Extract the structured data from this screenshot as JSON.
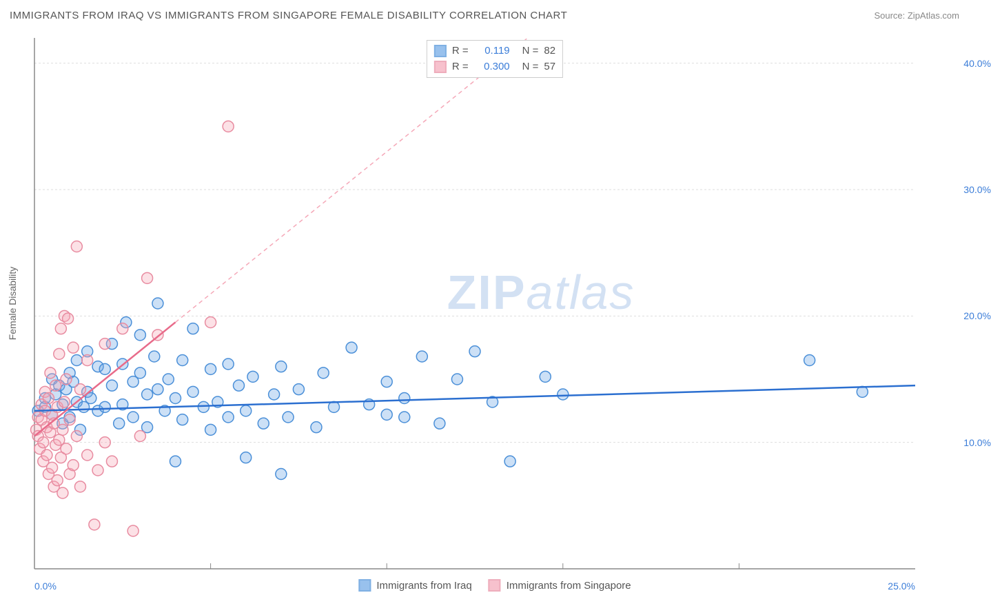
{
  "header": {
    "title": "IMMIGRANTS FROM IRAQ VS IMMIGRANTS FROM SINGAPORE FEMALE DISABILITY CORRELATION CHART",
    "source_prefix": "Source: ",
    "source": "ZipAtlas.com"
  },
  "watermark": {
    "bold": "ZIP",
    "rest": "atlas"
  },
  "chart": {
    "type": "scatter",
    "y_label": "Female Disability",
    "background_color": "#ffffff",
    "grid_color": "#dddddd",
    "axis_color": "#888888",
    "x": {
      "min": 0,
      "max": 25,
      "ticks": [
        0,
        25
      ],
      "tick_labels": [
        "0.0%",
        "25.0%"
      ],
      "minor_ticks": [
        5,
        10,
        15,
        20
      ]
    },
    "y": {
      "min": 0,
      "max": 42,
      "ticks": [
        10,
        20,
        30,
        40
      ],
      "tick_labels": [
        "10.0%",
        "20.0%",
        "30.0%",
        "40.0%"
      ]
    },
    "marker_radius": 8,
    "marker_stroke_width": 1.5,
    "marker_fill_opacity": 0.35,
    "series": [
      {
        "name": "Immigrants from Iraq",
        "color": "#6da7e6",
        "stroke": "#4a8fd8",
        "R": "0.119",
        "N": "82",
        "trend": {
          "x1": 0,
          "y1": 12.5,
          "x2": 25,
          "y2": 14.5,
          "color": "#2b6fd0",
          "width": 2.5,
          "dash": ""
        },
        "points": [
          [
            0.1,
            12.5
          ],
          [
            0.3,
            13.5
          ],
          [
            0.3,
            12.8
          ],
          [
            0.5,
            15.0
          ],
          [
            0.5,
            12.2
          ],
          [
            0.6,
            13.8
          ],
          [
            0.7,
            14.5
          ],
          [
            0.8,
            11.5
          ],
          [
            0.8,
            13.0
          ],
          [
            0.9,
            14.2
          ],
          [
            1.0,
            12.0
          ],
          [
            1.0,
            15.5
          ],
          [
            1.1,
            14.8
          ],
          [
            1.2,
            16.5
          ],
          [
            1.2,
            13.2
          ],
          [
            1.3,
            11.0
          ],
          [
            1.4,
            12.8
          ],
          [
            1.5,
            14.0
          ],
          [
            1.5,
            17.2
          ],
          [
            1.6,
            13.5
          ],
          [
            1.8,
            12.5
          ],
          [
            1.8,
            16.0
          ],
          [
            2.0,
            15.8
          ],
          [
            2.0,
            12.8
          ],
          [
            2.2,
            14.5
          ],
          [
            2.2,
            17.8
          ],
          [
            2.4,
            11.5
          ],
          [
            2.5,
            13.0
          ],
          [
            2.5,
            16.2
          ],
          [
            2.6,
            19.5
          ],
          [
            2.8,
            14.8
          ],
          [
            2.8,
            12.0
          ],
          [
            3.0,
            15.5
          ],
          [
            3.0,
            18.5
          ],
          [
            3.2,
            13.8
          ],
          [
            3.2,
            11.2
          ],
          [
            3.4,
            16.8
          ],
          [
            3.5,
            14.2
          ],
          [
            3.5,
            21.0
          ],
          [
            3.7,
            12.5
          ],
          [
            3.8,
            15.0
          ],
          [
            4.0,
            8.5
          ],
          [
            4.0,
            13.5
          ],
          [
            4.2,
            16.5
          ],
          [
            4.2,
            11.8
          ],
          [
            4.5,
            14.0
          ],
          [
            4.5,
            19.0
          ],
          [
            4.8,
            12.8
          ],
          [
            5.0,
            15.8
          ],
          [
            5.0,
            11.0
          ],
          [
            5.2,
            13.2
          ],
          [
            5.5,
            16.2
          ],
          [
            5.5,
            12.0
          ],
          [
            5.8,
            14.5
          ],
          [
            6.0,
            8.8
          ],
          [
            6.0,
            12.5
          ],
          [
            6.2,
            15.2
          ],
          [
            6.5,
            11.5
          ],
          [
            6.8,
            13.8
          ],
          [
            7.0,
            7.5
          ],
          [
            7.0,
            16.0
          ],
          [
            7.2,
            12.0
          ],
          [
            7.5,
            14.2
          ],
          [
            8.0,
            11.2
          ],
          [
            8.2,
            15.5
          ],
          [
            8.5,
            12.8
          ],
          [
            9.0,
            17.5
          ],
          [
            9.5,
            13.0
          ],
          [
            10.0,
            12.2
          ],
          [
            10.0,
            14.8
          ],
          [
            10.5,
            13.5
          ],
          [
            10.5,
            12.0
          ],
          [
            11.0,
            16.8
          ],
          [
            11.5,
            11.5
          ],
          [
            12.0,
            15.0
          ],
          [
            12.5,
            17.2
          ],
          [
            13.0,
            13.2
          ],
          [
            13.5,
            8.5
          ],
          [
            14.5,
            15.2
          ],
          [
            15.0,
            13.8
          ],
          [
            22.0,
            16.5
          ],
          [
            23.5,
            14.0
          ]
        ]
      },
      {
        "name": "Immigrants from Singapore",
        "color": "#f5a8b8",
        "stroke": "#e88ba0",
        "R": "0.300",
        "N": "57",
        "trend": {
          "x1": 0,
          "y1": 10.5,
          "x2": 4,
          "y2": 19.5,
          "color": "#e86b8a",
          "width": 2.5,
          "dash": ""
        },
        "trend_ext": {
          "x1": 4,
          "y1": 19.5,
          "x2": 18,
          "y2": 51,
          "color": "#f5a8b8",
          "width": 1.5,
          "dash": "6 5"
        },
        "points": [
          [
            0.05,
            11.0
          ],
          [
            0.1,
            12.0
          ],
          [
            0.1,
            10.5
          ],
          [
            0.15,
            9.5
          ],
          [
            0.2,
            13.0
          ],
          [
            0.2,
            11.8
          ],
          [
            0.25,
            10.0
          ],
          [
            0.25,
            8.5
          ],
          [
            0.3,
            12.5
          ],
          [
            0.3,
            14.0
          ],
          [
            0.35,
            11.2
          ],
          [
            0.35,
            9.0
          ],
          [
            0.4,
            7.5
          ],
          [
            0.4,
            13.5
          ],
          [
            0.45,
            10.8
          ],
          [
            0.45,
            15.5
          ],
          [
            0.5,
            12.2
          ],
          [
            0.5,
            8.0
          ],
          [
            0.55,
            6.5
          ],
          [
            0.55,
            11.5
          ],
          [
            0.6,
            9.8
          ],
          [
            0.6,
            14.5
          ],
          [
            0.65,
            7.0
          ],
          [
            0.65,
            12.8
          ],
          [
            0.7,
            17.0
          ],
          [
            0.7,
            10.2
          ],
          [
            0.75,
            8.8
          ],
          [
            0.75,
            19.0
          ],
          [
            0.8,
            11.0
          ],
          [
            0.8,
            6.0
          ],
          [
            0.85,
            13.2
          ],
          [
            0.85,
            20.0
          ],
          [
            0.9,
            9.5
          ],
          [
            0.9,
            15.0
          ],
          [
            0.95,
            19.8
          ],
          [
            1.0,
            11.8
          ],
          [
            1.0,
            7.5
          ],
          [
            1.1,
            8.2
          ],
          [
            1.1,
            17.5
          ],
          [
            1.2,
            10.5
          ],
          [
            1.2,
            25.5
          ],
          [
            1.3,
            6.5
          ],
          [
            1.3,
            14.2
          ],
          [
            1.5,
            9.0
          ],
          [
            1.5,
            16.5
          ],
          [
            1.7,
            3.5
          ],
          [
            1.8,
            7.8
          ],
          [
            2.0,
            10.0
          ],
          [
            2.0,
            17.8
          ],
          [
            2.2,
            8.5
          ],
          [
            2.5,
            19.0
          ],
          [
            2.8,
            3.0
          ],
          [
            3.0,
            10.5
          ],
          [
            3.2,
            23.0
          ],
          [
            3.5,
            18.5
          ],
          [
            5.0,
            19.5
          ],
          [
            5.5,
            35.0
          ]
        ]
      }
    ],
    "stats_labels": {
      "R": "R =",
      "N": "N ="
    },
    "bottom_legend": [
      {
        "label": "Immigrants from Iraq",
        "color": "#6da7e6",
        "stroke": "#4a8fd8"
      },
      {
        "label": "Immigrants from Singapore",
        "color": "#f5a8b8",
        "stroke": "#e88ba0"
      }
    ]
  }
}
